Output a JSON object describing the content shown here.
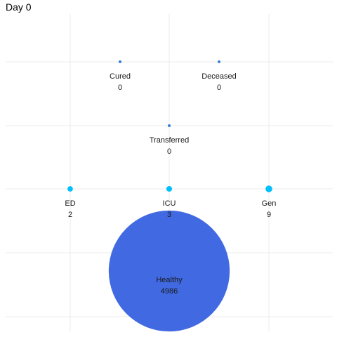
{
  "chart_data": {
    "type": "scatter",
    "title": "Day 0",
    "grid": true,
    "colors": {
      "small_node": "#3a7fd5",
      "flow_node": "#00bfff",
      "healthy_node": "#4169e1",
      "grid": "#ebebeb"
    },
    "nodes": [
      {
        "name": "Cured",
        "value": 0
      },
      {
        "name": "Deceased",
        "value": 0
      },
      {
        "name": "Transferred",
        "value": 0
      },
      {
        "name": "ED",
        "value": 2
      },
      {
        "name": "ICU",
        "value": 3
      },
      {
        "name": "Gen",
        "value": 9
      },
      {
        "name": "Healthy",
        "value": 4986
      }
    ]
  }
}
